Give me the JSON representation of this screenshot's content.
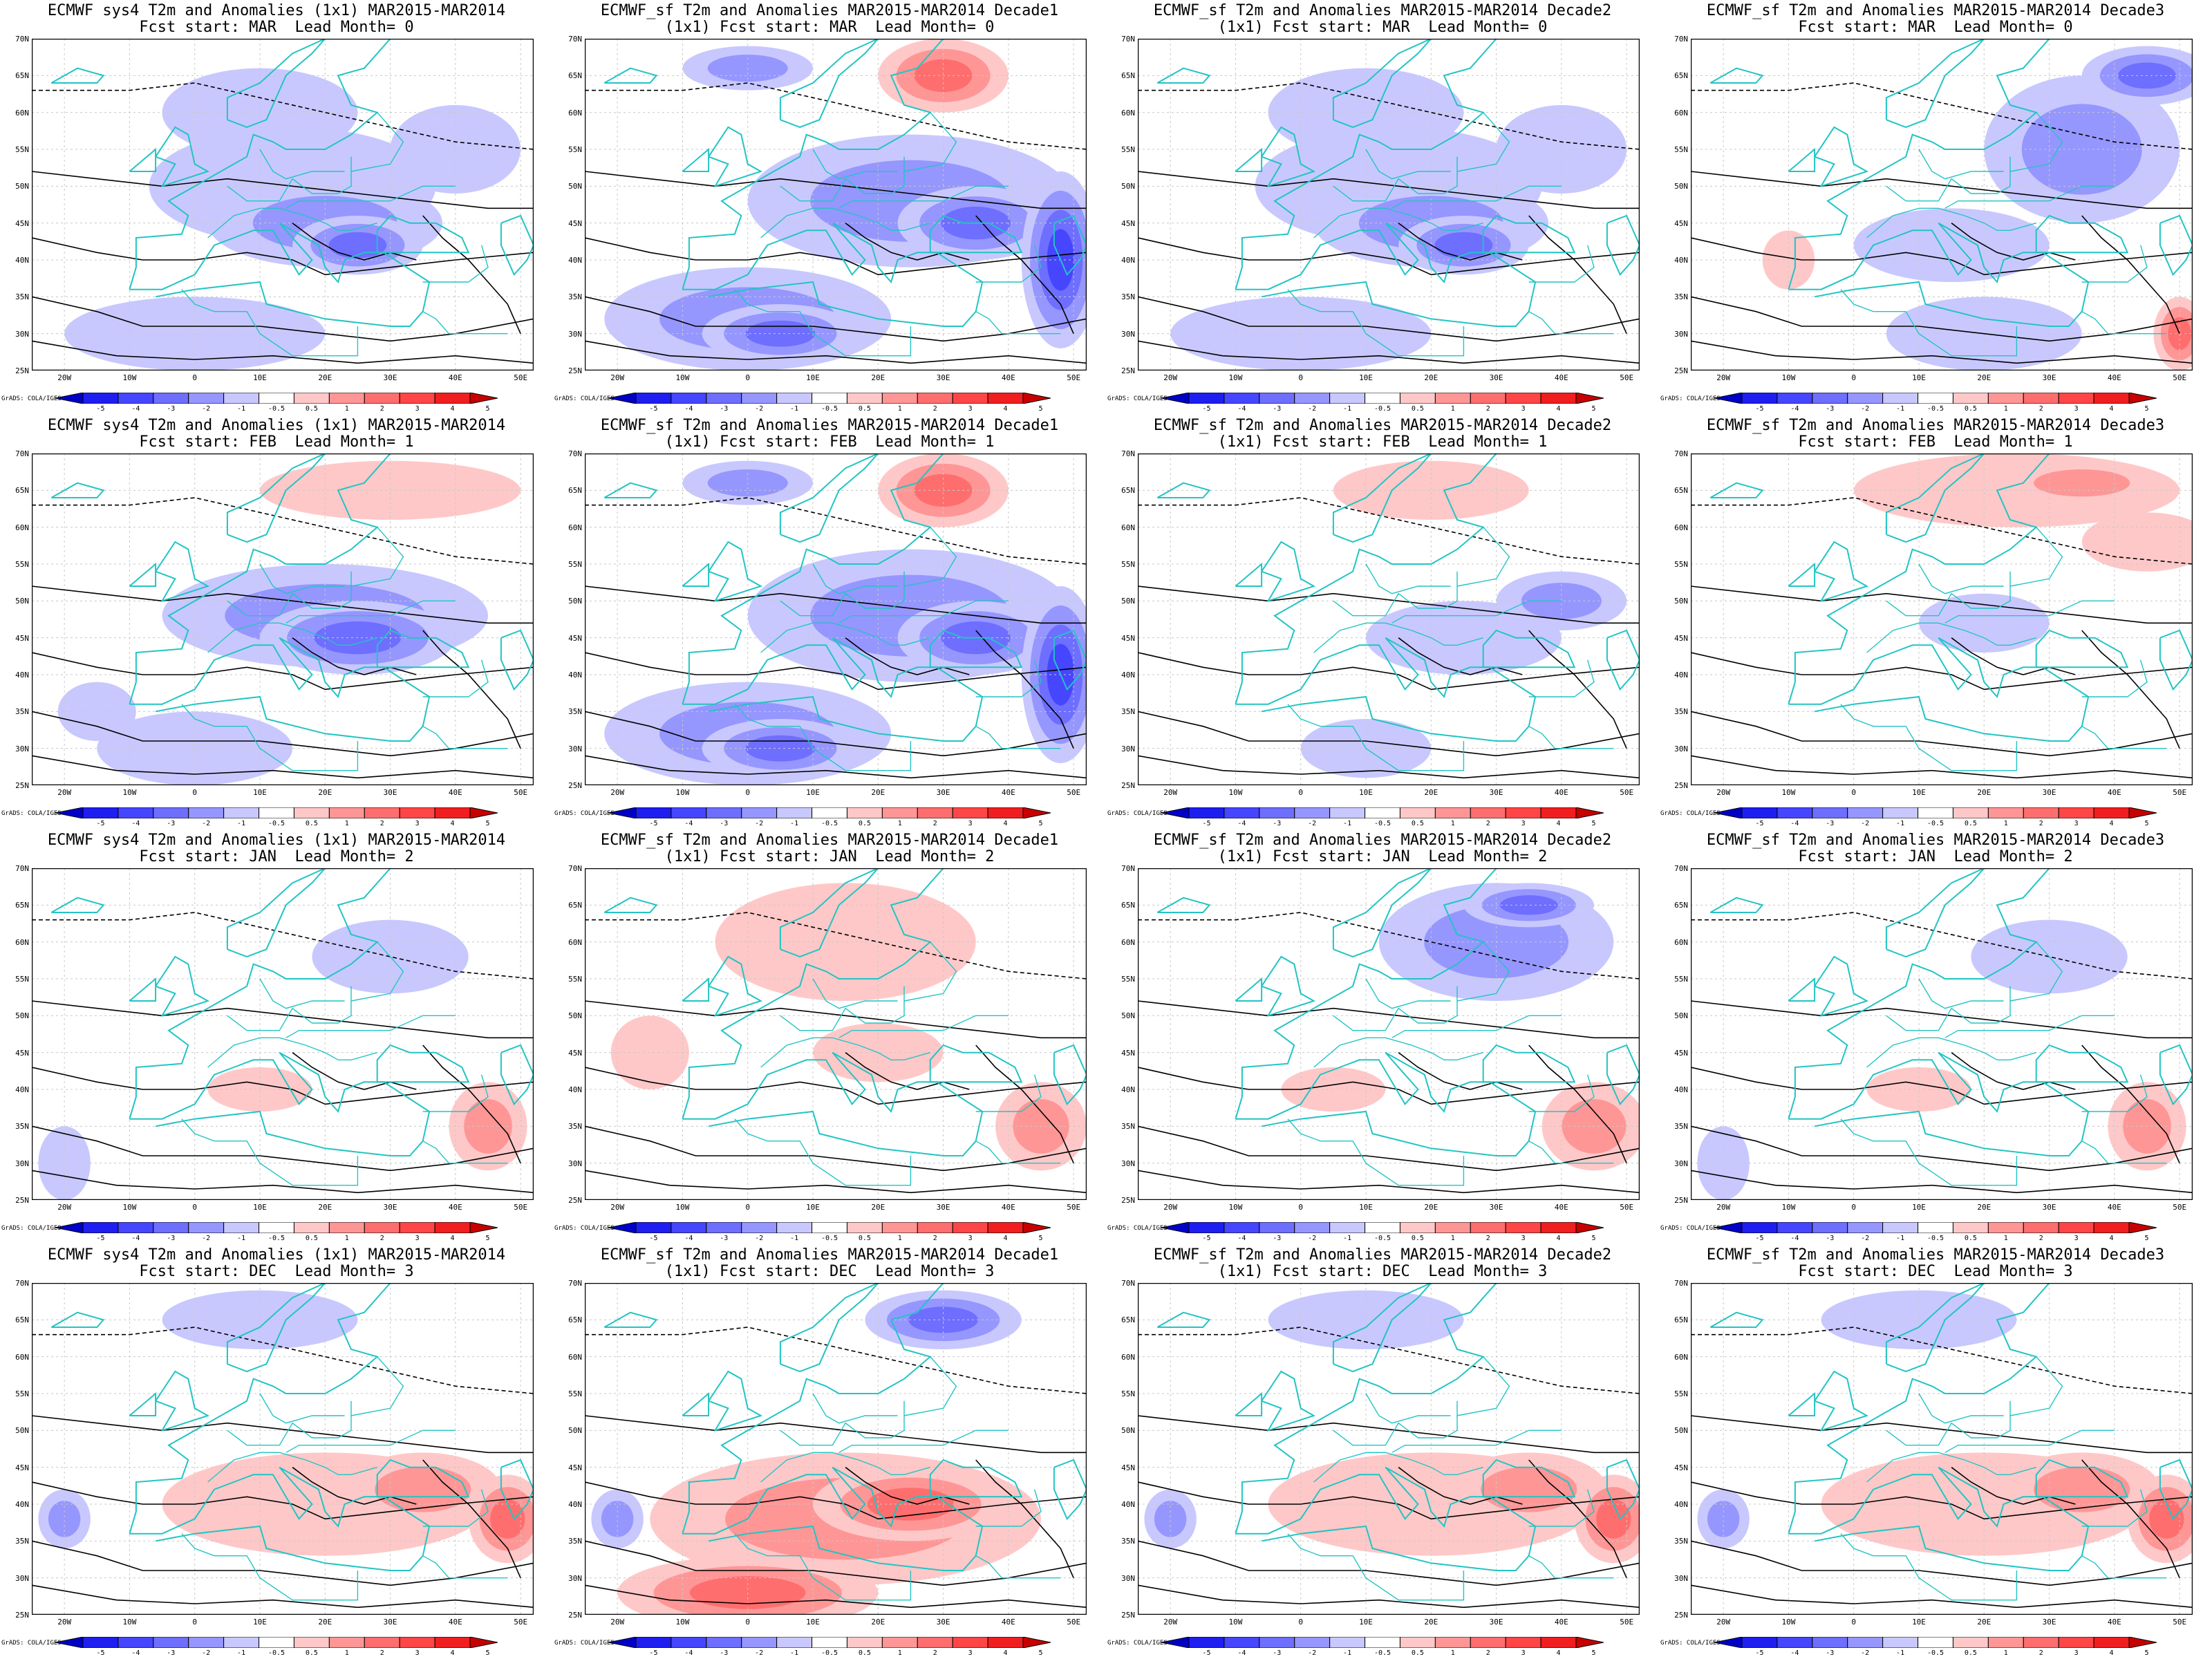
{
  "panels": [
    {
      "line1": "ECMWF sys4 T2m and Anomalies (1x1) MAR2015-MAR2014",
      "line2": "Fcst start: MAR  Lead Month= 0",
      "pattern": "cold"
    },
    {
      "line1": "ECMWF_sf T2m and Anomalies MAR2015-MAR2014 Decade1",
      "line2": "(1x1) Fcst start: MAR  Lead Month= 0",
      "pattern": "strongcold"
    },
    {
      "line1": "ECMWF_sf T2m and Anomalies MAR2015-MAR2014 Decade2",
      "line2": "(1x1) Fcst start: MAR  Lead Month= 0",
      "pattern": "cold"
    },
    {
      "line1": "ECMWF_sf T2m and Anomalies MAR2015-MAR2014 Decade3",
      "line2": "Fcst start: MAR  Lead Month= 0",
      "pattern": "coldnorth"
    },
    {
      "line1": "ECMWF sys4 T2m and Anomalies (1x1) MAR2015-MAR2014",
      "line2": "Fcst start: FEB  Lead Month= 1",
      "pattern": "coldcentral"
    },
    {
      "line1": "ECMWF_sf T2m and Anomalies MAR2015-MAR2014 Decade1",
      "line2": "(1x1) Fcst start: FEB  Lead Month= 1",
      "pattern": "strongcold"
    },
    {
      "line1": "ECMWF_sf T2m and Anomalies MAR2015-MAR2014 Decade2",
      "line2": "(1x1) Fcst start: FEB  Lead Month= 1",
      "pattern": "mixed"
    },
    {
      "line1": "ECMWF_sf T2m and Anomalies MAR2015-MAR2014 Decade3",
      "line2": "Fcst start: FEB  Lead Month= 1",
      "pattern": "warmnorth"
    },
    {
      "line1": "ECMWF sys4 T2m and Anomalies (1x1) MAR2015-MAR2014",
      "line2": "Fcst start: JAN  Lead Month= 2",
      "pattern": "neutral"
    },
    {
      "line1": "ECMWF_sf T2m and Anomalies MAR2015-MAR2014 Decade1",
      "line2": "(1x1) Fcst start: JAN  Lead Month= 2",
      "pattern": "warmlight"
    },
    {
      "line1": "ECMWF_sf T2m and Anomalies MAR2015-MAR2014 Decade2",
      "line2": "(1x1) Fcst start: JAN  Lead Month= 2",
      "pattern": "coldnortheast"
    },
    {
      "line1": "ECMWF_sf T2m and Anomalies MAR2015-MAR2014 Decade3",
      "line2": "Fcst start: JAN  Lead Month= 2",
      "pattern": "neutral"
    },
    {
      "line1": "ECMWF sys4 T2m and Anomalies (1x1) MAR2015-MAR2014",
      "line2": "Fcst start: DEC  Lead Month= 3",
      "pattern": "warmsouth"
    },
    {
      "line1": "ECMWF_sf T2m and Anomalies MAR2015-MAR2014 Decade1",
      "line2": "(1x1) Fcst start: DEC  Lead Month= 3",
      "pattern": "strongwarm"
    },
    {
      "line1": "ECMWF_sf T2m and Anomalies MAR2015-MAR2014 Decade2",
      "line2": "(1x1) Fcst start: DEC  Lead Month= 3",
      "pattern": "warmsouth"
    },
    {
      "line1": "ECMWF_sf T2m and Anomalies MAR2015-MAR2014 Decade3",
      "line2": "Fcst start: DEC  Lead Month= 3",
      "pattern": "warmsouth"
    }
  ],
  "lat_labels": [
    "70N",
    "65N",
    "60N",
    "55N",
    "50N",
    "45N",
    "40N",
    "35N",
    "30N",
    "25N"
  ],
  "lon_labels": [
    "20W",
    "10W",
    "0",
    "10E",
    "20E",
    "30E",
    "40E",
    "50E"
  ],
  "colorbar_labels": [
    "-5",
    "-4",
    "-3",
    "-2",
    "-1",
    "-0.5",
    "0.5",
    "1",
    "2",
    "3",
    "4",
    "5"
  ],
  "colorbar_colors": [
    "#0000c8",
    "#1e1ef0",
    "#4646ff",
    "#6e6eff",
    "#9696ff",
    "#c8c8ff",
    "#ffffff",
    "#ffc8c8",
    "#ff9696",
    "#ff6e6e",
    "#ff4646",
    "#f01e1e",
    "#c80000"
  ],
  "credit": "GrADS: COLA/IGES",
  "colors": {
    "coast": "#22c4c4",
    "contour": "#000000",
    "grid": "#c8c8c8"
  }
}
